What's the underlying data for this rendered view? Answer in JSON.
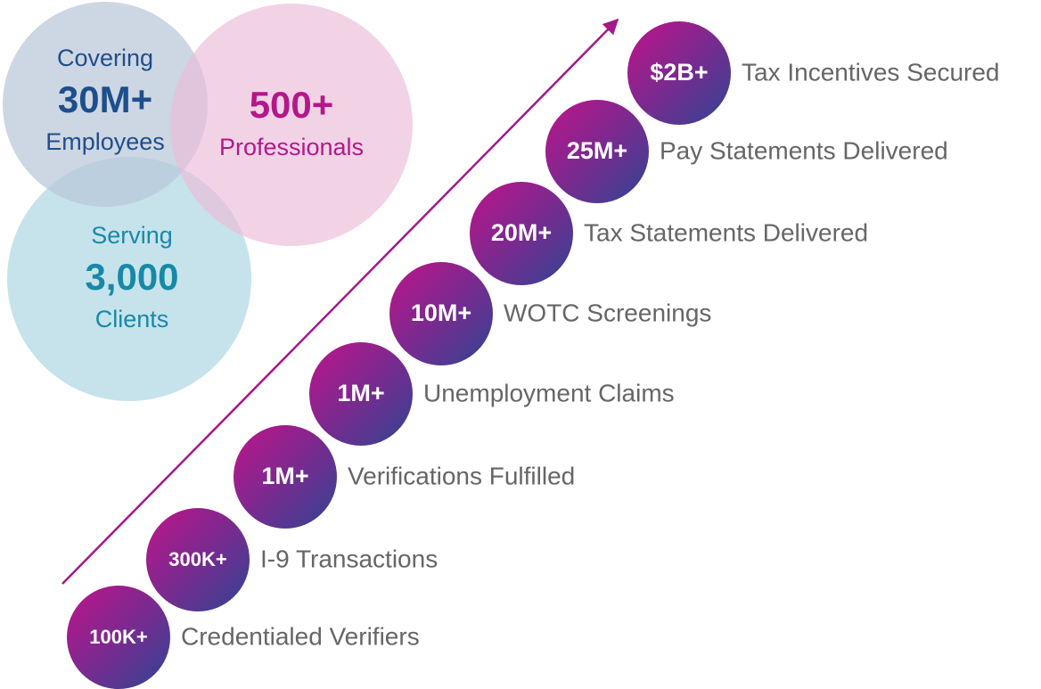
{
  "circles": [
    {
      "top": "Covering",
      "value": "30M+",
      "bottom": "Employees"
    },
    {
      "value": "500+",
      "bottom": "Professionals"
    },
    {
      "top": "Serving",
      "value": "3,000",
      "bottom": "Clients"
    }
  ],
  "steps": [
    {
      "value": "100K+",
      "label": "Credentialed Verifiers"
    },
    {
      "value": "300K+",
      "label": "I-9 Transactions"
    },
    {
      "value": "1M+",
      "label": "Verifications Fulfilled"
    },
    {
      "value": "1M+",
      "label": "Unemployment Claims"
    },
    {
      "value": "10M+",
      "label": "WOTC Screenings"
    },
    {
      "value": "20M+",
      "label": "Tax Statements Delivered"
    },
    {
      "value": "25M+",
      "label": "Pay Statements Delivered"
    },
    {
      "value": "$2B+",
      "label": "Tax Incentives Secured"
    }
  ]
}
